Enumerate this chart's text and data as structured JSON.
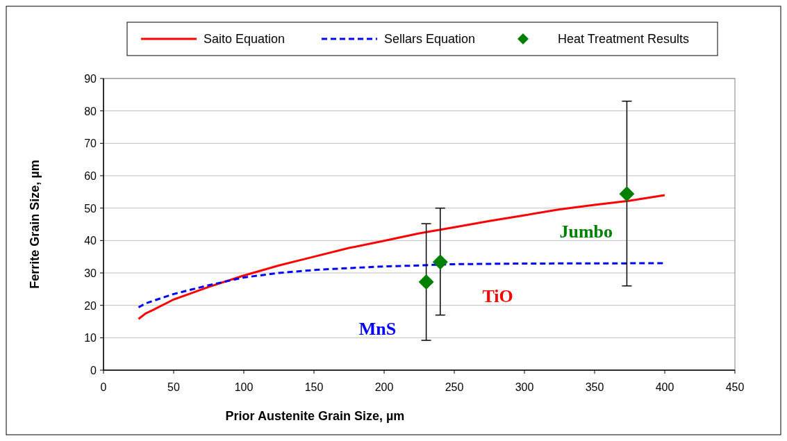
{
  "chart_data": {
    "type": "line",
    "xlabel": "Prior Austenite Grain Size,   µm",
    "ylabel": "Ferrite Grain Size,  µm",
    "xlim": [
      0,
      450
    ],
    "xticks": [
      0,
      50,
      100,
      150,
      200,
      250,
      300,
      350,
      400,
      450
    ],
    "ylim": [
      0,
      90
    ],
    "yticks": [
      0,
      10,
      20,
      30,
      40,
      50,
      60,
      70,
      80,
      90
    ],
    "grid": "y",
    "legend": "top",
    "series": [
      {
        "name": "Saito Equation",
        "color": "#ff0000",
        "line_style": "solid",
        "marker": "none",
        "x": [
          25,
          30,
          35,
          50,
          75,
          100,
          125,
          150,
          175,
          200,
          225,
          250,
          275,
          300,
          325,
          350,
          375,
          400
        ],
        "values": [
          15.8,
          17.5,
          18.5,
          21.8,
          25.7,
          29.2,
          32.3,
          35,
          37.7,
          39.9,
          42.2,
          44.1,
          46,
          47.8,
          49.6,
          51,
          52.3,
          54
        ]
      },
      {
        "name": "Sellars Equation",
        "color": "#0000ff",
        "line_style": "dashed",
        "marker": "none",
        "x": [
          25,
          30,
          50,
          75,
          100,
          125,
          150,
          175,
          200,
          225,
          235,
          250,
          300,
          400
        ],
        "values": [
          19.4,
          20.6,
          23.5,
          26.2,
          28.6,
          30,
          30.9,
          31.5,
          32,
          32.3,
          32.5,
          32.7,
          32.9,
          33
        ]
      },
      {
        "name": "Heat Treatment Results",
        "type": "scatter",
        "color": "#008000",
        "marker": "diamond",
        "x": [
          230,
          240,
          373
        ],
        "values": [
          27.2,
          33.4,
          54.4
        ],
        "errors": [
          [
            9.2,
            45.2
          ],
          [
            17,
            50
          ],
          [
            26,
            83
          ]
        ]
      }
    ],
    "annotations": [
      "MnS",
      "TiO",
      "Jumbo"
    ]
  }
}
